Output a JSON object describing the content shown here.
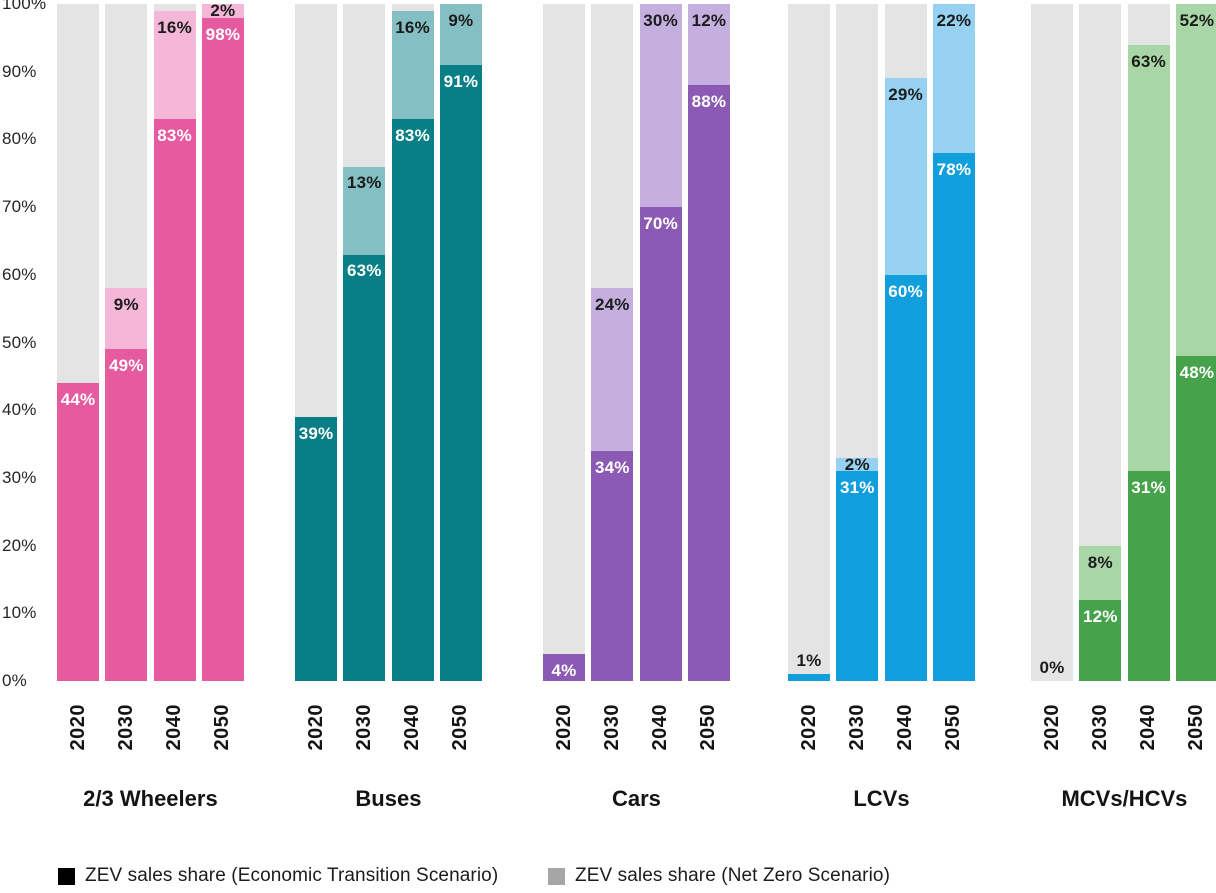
{
  "chart_data": {
    "type": "bar",
    "stacked": true,
    "title": "",
    "xlabel": "",
    "ylabel": "",
    "ylim": [
      0,
      100
    ],
    "grid": false,
    "unit": "%",
    "yticks": [
      "0%",
      "10%",
      "20%",
      "30%",
      "40%",
      "50%",
      "60%",
      "70%",
      "80%",
      "90%",
      "100%"
    ],
    "years": [
      "2020",
      "2030",
      "2040",
      "2050"
    ],
    "track_color": "#e4e4e4",
    "series_note": "Dark segment = ZEV sales share (Economic Transition Scenario); light segment = additional share to reach Net Zero Scenario",
    "groups": [
      {
        "label": "2/3 Wheelers",
        "colors": {
          "ets": "#e65a9f",
          "nzs": "#f4b7d7"
        },
        "ets_values": [
          44,
          49,
          83,
          98
        ],
        "nzs_additional_values": [
          null,
          9,
          16,
          2
        ]
      },
      {
        "label": "Buses",
        "colors": {
          "ets": "#087f86",
          "nzs": "#84bfc3"
        },
        "ets_values": [
          39,
          63,
          83,
          91
        ],
        "nzs_additional_values": [
          null,
          13,
          16,
          9
        ]
      },
      {
        "label": "Cars",
        "colors": {
          "ets": "#8a5ab4",
          "nzs": "#c5afdf"
        },
        "ets_values": [
          4,
          34,
          70,
          88
        ],
        "nzs_additional_values": [
          null,
          24,
          30,
          12
        ]
      },
      {
        "label": "LCVs",
        "colors": {
          "ets": "#119edd",
          "nzs": "#96d1f2"
        },
        "ets_values": [
          1,
          31,
          60,
          78
        ],
        "nzs_additional_values": [
          null,
          2,
          29,
          22
        ]
      },
      {
        "label": "MCVs/HCVs",
        "colors": {
          "ets": "#46a34c",
          "nzs": "#a9d6a6"
        },
        "ets_values": [
          0,
          12,
          31,
          48
        ],
        "nzs_additional_values": [
          null,
          8,
          63,
          52
        ]
      }
    ]
  },
  "legend": {
    "items": [
      {
        "label": "ZEV sales share (Economic Transition Scenario)",
        "swatch": "#000000"
      },
      {
        "label": "ZEV sales share (Net Zero Scenario)",
        "swatch": "#a6a6a6"
      }
    ]
  }
}
